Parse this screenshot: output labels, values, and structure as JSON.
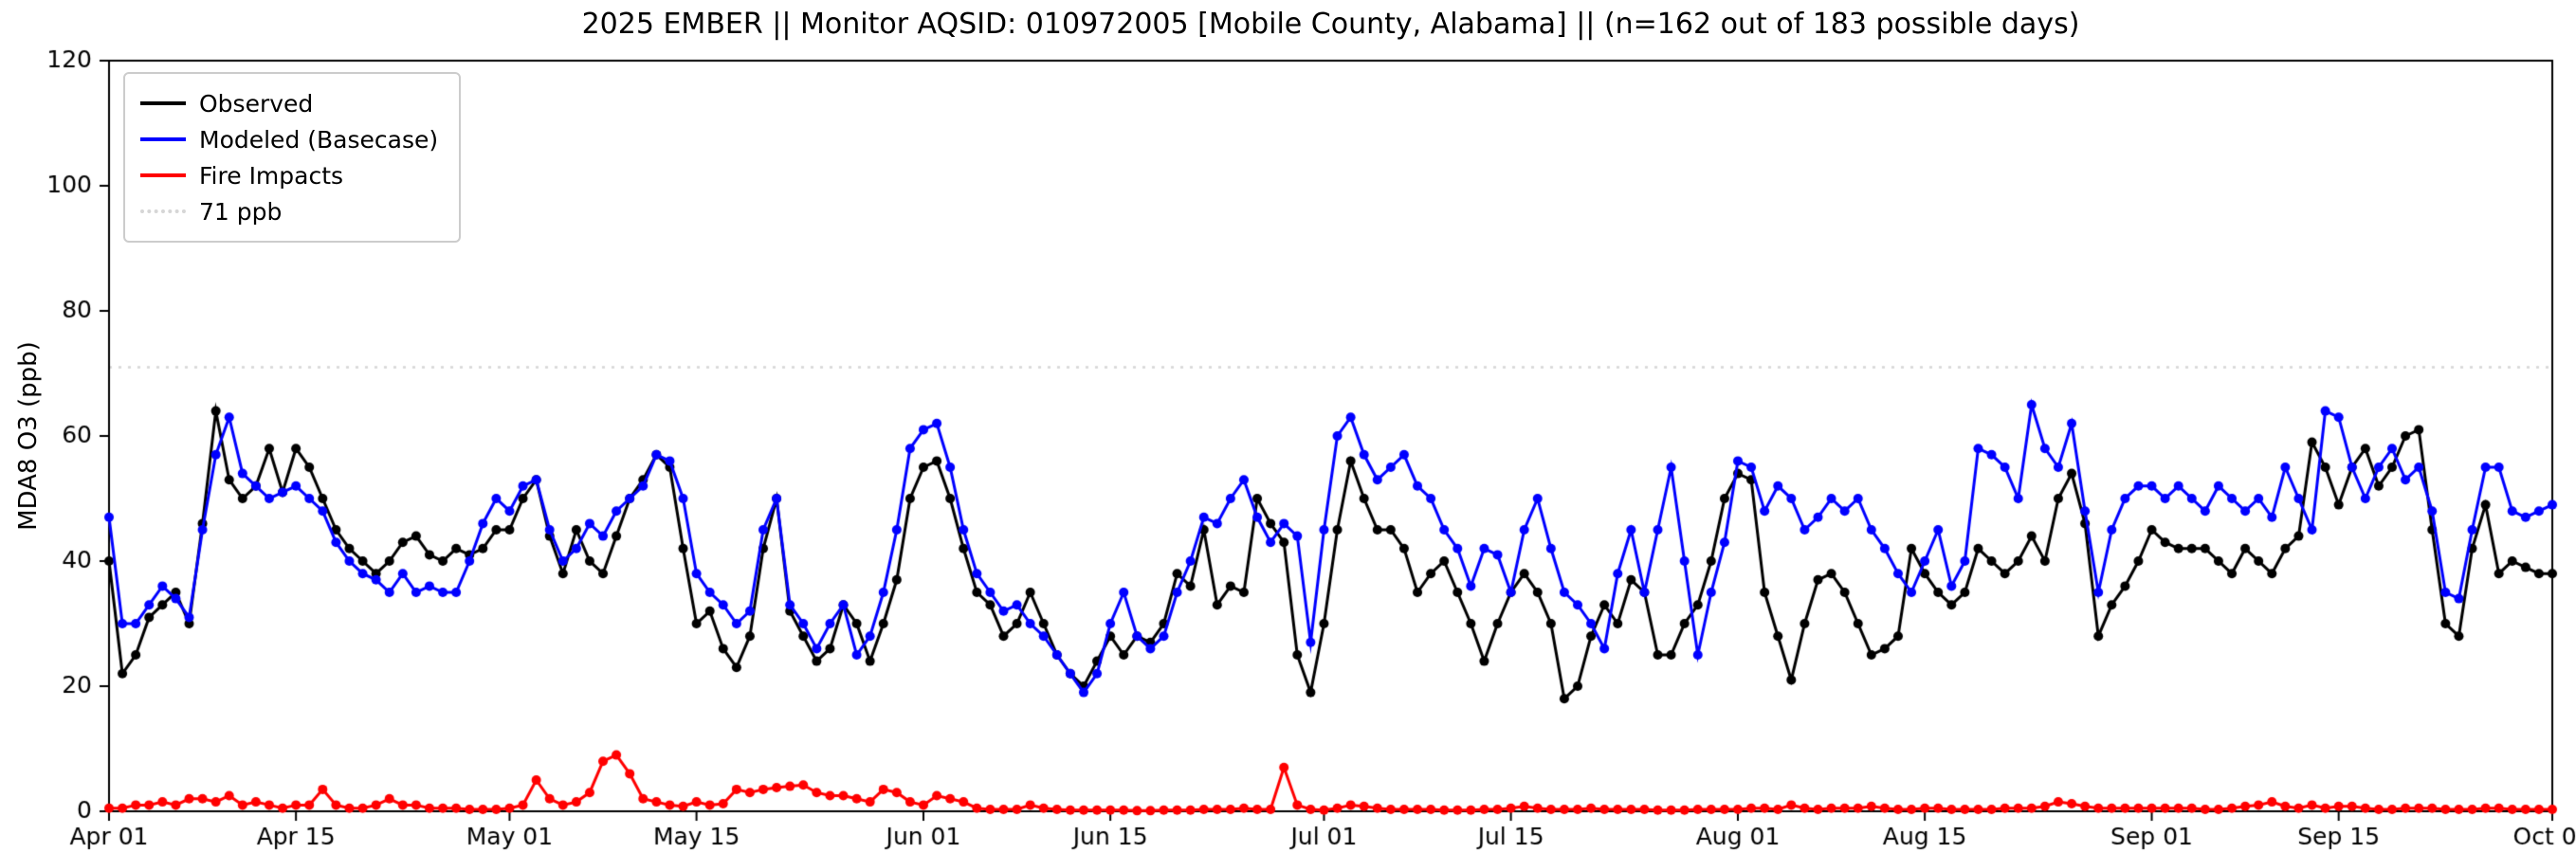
{
  "figure": {
    "background": "#ffffff"
  },
  "chart_data": {
    "type": "line",
    "title": "2025 EMBER || Monitor AQSID: 010972005 [Mobile County, Alabama] || (n=162 out of 183 possible days)",
    "xlabel": "",
    "ylabel": "MDA8 O3 (ppb)",
    "ylim": [
      0,
      120
    ],
    "y_ticks": [
      0,
      20,
      40,
      60,
      80,
      100,
      120
    ],
    "x_start_day": 0,
    "x_end_day": 183,
    "x_ticks": [
      {
        "day": 0,
        "label": "Apr 01"
      },
      {
        "day": 14,
        "label": "Apr 15"
      },
      {
        "day": 30,
        "label": "May 01"
      },
      {
        "day": 44,
        "label": "May 15"
      },
      {
        "day": 61,
        "label": "Jun 01"
      },
      {
        "day": 75,
        "label": "Jun 15"
      },
      {
        "day": 91,
        "label": "Jul 01"
      },
      {
        "day": 105,
        "label": "Jul 15"
      },
      {
        "day": 122,
        "label": "Aug 01"
      },
      {
        "day": 136,
        "label": "Aug 15"
      },
      {
        "day": 153,
        "label": "Sep 01"
      },
      {
        "day": 167,
        "label": "Sep 15"
      },
      {
        "day": 183,
        "label": "Oct 01"
      }
    ],
    "grid": false,
    "legend_position": "upper-left",
    "reference_line": {
      "value": 71,
      "label": "71 ppb",
      "color": "#d6d6d6",
      "style": "dotted"
    },
    "series": [
      {
        "name": "Observed",
        "color": "#000000",
        "values": [
          40,
          22,
          25,
          31,
          33,
          35,
          30,
          46,
          64,
          53,
          50,
          52,
          58,
          51,
          58,
          55,
          50,
          45,
          42,
          40,
          38,
          40,
          43,
          44,
          41,
          40,
          42,
          41,
          42,
          45,
          45,
          50,
          53,
          44,
          38,
          45,
          40,
          38,
          44,
          50,
          53,
          57,
          55,
          42,
          30,
          32,
          26,
          23,
          28,
          42,
          50,
          32,
          28,
          24,
          26,
          33,
          30,
          24,
          30,
          37,
          50,
          55,
          56,
          50,
          42,
          35,
          33,
          28,
          30,
          35,
          30,
          25,
          22,
          20,
          24,
          28,
          25,
          28,
          27,
          30,
          38,
          36,
          45,
          33,
          36,
          35,
          50,
          46,
          43,
          25,
          19,
          30,
          45,
          56,
          50,
          45,
          45,
          42,
          35,
          38,
          40,
          35,
          30,
          24,
          30,
          35,
          38,
          35,
          30,
          18,
          20,
          28,
          33,
          30,
          37,
          35,
          25,
          25,
          30,
          33,
          40,
          50,
          54,
          53,
          35,
          28,
          21,
          30,
          37,
          38,
          35,
          30,
          25,
          26,
          28,
          42,
          38,
          35,
          33,
          35,
          42,
          40,
          38,
          40,
          44,
          40,
          50,
          54,
          46,
          28,
          33,
          36,
          40,
          45,
          43,
          42,
          42,
          42,
          40,
          38,
          42,
          40,
          38,
          42,
          44,
          59,
          55,
          49,
          55,
          58,
          52,
          55,
          60,
          61,
          45,
          30,
          28,
          42,
          49,
          38,
          40,
          39,
          38,
          38
        ]
      },
      {
        "name": "Modeled (Basecase)",
        "color": "#0000ff",
        "values": [
          47,
          30,
          30,
          33,
          36,
          34,
          31,
          45,
          57,
          63,
          54,
          52,
          50,
          51,
          52,
          50,
          48,
          43,
          40,
          38,
          37,
          35,
          38,
          35,
          36,
          35,
          35,
          40,
          46,
          50,
          48,
          52,
          53,
          45,
          40,
          42,
          46,
          44,
          48,
          50,
          52,
          57,
          56,
          50,
          38,
          35,
          33,
          30,
          32,
          45,
          50,
          33,
          30,
          26,
          30,
          33,
          25,
          28,
          35,
          45,
          58,
          61,
          62,
          55,
          45,
          38,
          35,
          32,
          33,
          30,
          28,
          25,
          22,
          19,
          22,
          30,
          35,
          28,
          26,
          28,
          35,
          40,
          47,
          46,
          50,
          53,
          47,
          43,
          46,
          44,
          27,
          45,
          60,
          63,
          57,
          53,
          55,
          57,
          52,
          50,
          45,
          42,
          36,
          42,
          41,
          35,
          45,
          50,
          42,
          35,
          33,
          30,
          26,
          38,
          45,
          35,
          45,
          55,
          40,
          25,
          35,
          43,
          56,
          55,
          48,
          52,
          50,
          45,
          47,
          50,
          48,
          50,
          45,
          42,
          38,
          35,
          40,
          45,
          36,
          40,
          58,
          57,
          55,
          50,
          65,
          58,
          55,
          62,
          48,
          35,
          45,
          50,
          52,
          52,
          50,
          52,
          50,
          48,
          52,
          50,
          48,
          50,
          47,
          55,
          50,
          45,
          64,
          63,
          55,
          50,
          55,
          58,
          53,
          55,
          48,
          35,
          34,
          45,
          55,
          55,
          48,
          47,
          48,
          49
        ]
      },
      {
        "name": "Fire Impacts",
        "color": "#ff0000",
        "values": [
          0.5,
          0.5,
          1,
          1,
          1.5,
          1,
          2,
          2,
          1.5,
          2.5,
          1,
          1.5,
          1,
          0.5,
          1,
          1,
          3.5,
          1,
          0.5,
          0.5,
          1,
          2,
          1,
          1,
          0.5,
          0.5,
          0.5,
          0.3,
          0.3,
          0.3,
          0.5,
          1,
          5,
          2,
          1,
          1.5,
          3,
          8,
          9,
          6,
          2,
          1.5,
          1,
          0.8,
          1.5,
          1,
          1.2,
          3.5,
          3,
          3.5,
          3.8,
          4,
          4.2,
          3,
          2.5,
          2.5,
          2,
          1.5,
          3.5,
          3,
          1.5,
          1,
          2.5,
          2,
          1.5,
          0.5,
          0.3,
          0.3,
          0.3,
          1,
          0.5,
          0.3,
          0.2,
          0.2,
          0.2,
          0.2,
          0.2,
          0.1,
          0.1,
          0.2,
          0.2,
          0.2,
          0.3,
          0.3,
          0.3,
          0.5,
          0.3,
          0.3,
          7,
          1,
          0.3,
          0.2,
          0.5,
          1,
          0.8,
          0.5,
          0.3,
          0.3,
          0.3,
          0.3,
          0.2,
          0.2,
          0.2,
          0.3,
          0.3,
          0.5,
          0.8,
          0.5,
          0.3,
          0.3,
          0.3,
          0.5,
          0.3,
          0.3,
          0.3,
          0.3,
          0.2,
          0.2,
          0.2,
          0.3,
          0.3,
          0.3,
          0.3,
          0.5,
          0.5,
          0.3,
          1,
          0.5,
          0.3,
          0.5,
          0.5,
          0.5,
          0.8,
          0.5,
          0.3,
          0.3,
          0.5,
          0.5,
          0.3,
          0.3,
          0.3,
          0.3,
          0.5,
          0.5,
          0.5,
          0.8,
          1.5,
          1.2,
          0.8,
          0.5,
          0.5,
          0.5,
          0.5,
          0.5,
          0.5,
          0.5,
          0.5,
          0.3,
          0.3,
          0.5,
          0.8,
          1,
          1.5,
          0.8,
          0.5,
          1,
          0.5,
          0.8,
          0.8,
          0.5,
          0.3,
          0.3,
          0.5,
          0.5,
          0.5,
          0.3,
          0.3,
          0.3,
          0.5,
          0.5,
          0.3,
          0.3,
          0.3,
          0.3
        ]
      }
    ]
  }
}
